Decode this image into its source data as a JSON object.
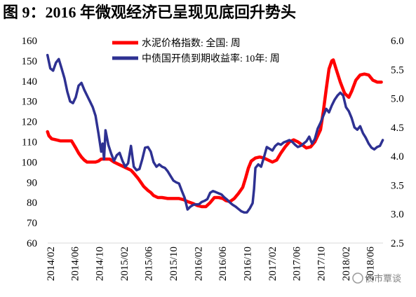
{
  "watermark": "债市覃谈",
  "chart_data": {
    "type": "line",
    "title": "图 9：2016 年微观经济已呈现见底回升势头",
    "x_type": "date",
    "xlim": [
      "2014-01-17",
      "2018-08-03"
    ],
    "x_ticks": [
      "2014/02",
      "2014/06",
      "2014/10",
      "2015/02",
      "2015/06",
      "2015/10",
      "2016/02",
      "2016/06",
      "2016/10",
      "2017/02",
      "2017/06",
      "2017/10",
      "2018/02",
      "2018/06"
    ],
    "y_left": {
      "ylim": [
        60,
        160
      ],
      "ticks": [
        "60",
        "70",
        "80",
        "90",
        "100",
        "110",
        "120",
        "130",
        "140",
        "150",
        "160"
      ]
    },
    "y_right": {
      "ylim": [
        2.5,
        6.0
      ],
      "ticks": [
        "2.5",
        "3.0",
        "3.5",
        "4.0",
        "4.5",
        "5.0",
        "5.5",
        "6.0"
      ]
    },
    "grid": false,
    "legend_position": "top",
    "series": [
      {
        "name": "水泥价格指数: 全国: 周",
        "axis": "left",
        "color": "#ff0000",
        "x": [
          "2014-01-17",
          "2014-01-24",
          "2014-02-07",
          "2014-02-28",
          "2014-03-21",
          "2014-04-11",
          "2014-05-02",
          "2014-05-16",
          "2014-06-06",
          "2014-06-20",
          "2014-07-04",
          "2014-07-18",
          "2014-08-01",
          "2014-08-22",
          "2014-09-12",
          "2014-09-26",
          "2014-10-10",
          "2014-10-31",
          "2014-11-21",
          "2014-12-12",
          "2015-01-02",
          "2015-01-23",
          "2015-02-13",
          "2015-03-06",
          "2015-03-20",
          "2015-04-10",
          "2015-04-24",
          "2015-05-08",
          "2015-05-29",
          "2015-06-12",
          "2015-06-26",
          "2015-07-17",
          "2015-08-07",
          "2015-09-04",
          "2015-10-02",
          "2015-10-30",
          "2015-11-20",
          "2015-12-11",
          "2016-01-08",
          "2016-01-29",
          "2016-02-19",
          "2016-03-11",
          "2016-04-01",
          "2016-04-22",
          "2016-05-13",
          "2016-06-03",
          "2016-06-17",
          "2016-07-08",
          "2016-07-29",
          "2016-08-19",
          "2016-09-09",
          "2016-09-23",
          "2016-10-07",
          "2016-10-21",
          "2016-11-11",
          "2016-12-02",
          "2016-12-23",
          "2017-01-13",
          "2017-02-03",
          "2017-02-24",
          "2017-03-17",
          "2017-04-07",
          "2017-04-28",
          "2017-05-19",
          "2017-06-09",
          "2017-06-30",
          "2017-07-21",
          "2017-08-11",
          "2017-09-01",
          "2017-09-15",
          "2017-09-29",
          "2017-10-13",
          "2017-10-27",
          "2017-11-10",
          "2017-11-24",
          "2017-12-01",
          "2017-12-15",
          "2018-01-05",
          "2018-01-26",
          "2018-02-16",
          "2018-03-02",
          "2018-03-23",
          "2018-04-13",
          "2018-05-04",
          "2018-05-25",
          "2018-06-15",
          "2018-07-06",
          "2018-07-27"
        ],
        "y": [
          115,
          113,
          111.5,
          111,
          110.5,
          110.5,
          110.5,
          110.5,
          107,
          104.5,
          102.5,
          101,
          100,
          100,
          100,
          100.5,
          101.5,
          101.5,
          101.5,
          100,
          99,
          98,
          97,
          96,
          94.5,
          92,
          90,
          88,
          86,
          85,
          83.5,
          82.5,
          82.5,
          82,
          82,
          82,
          81.5,
          80.5,
          79.5,
          78.5,
          78,
          78,
          80,
          82.5,
          82.5,
          82,
          81,
          80.5,
          82,
          84.5,
          87.5,
          92,
          97,
          100.5,
          102,
          102.5,
          102,
          101,
          100,
          101,
          104.5,
          107.5,
          110,
          111,
          110,
          108.5,
          107,
          107.5,
          110,
          113,
          116,
          125,
          136,
          146,
          150,
          150.5,
          146,
          139.5,
          134,
          132,
          135,
          140.5,
          143,
          143.5,
          143,
          140.5,
          139.5,
          139.5
        ]
      },
      {
        "name": "中债国开债到期收益率: 10年: 周",
        "axis": "right",
        "color": "#2e3192",
        "x": [
          "2014-01-17",
          "2014-01-31",
          "2014-02-14",
          "2014-02-28",
          "2014-03-14",
          "2014-03-28",
          "2014-04-11",
          "2014-04-25",
          "2014-05-09",
          "2014-05-23",
          "2014-06-06",
          "2014-06-20",
          "2014-07-04",
          "2014-07-18",
          "2014-08-01",
          "2014-08-15",
          "2014-08-29",
          "2014-09-12",
          "2014-09-26",
          "2014-10-10",
          "2014-10-17",
          "2014-10-24",
          "2014-10-31",
          "2014-11-14",
          "2014-11-28",
          "2014-12-12",
          "2014-12-26",
          "2015-01-09",
          "2015-01-23",
          "2015-02-06",
          "2015-02-20",
          "2015-03-06",
          "2015-03-20",
          "2015-04-03",
          "2015-04-17",
          "2015-05-01",
          "2015-05-15",
          "2015-05-29",
          "2015-06-12",
          "2015-06-26",
          "2015-07-10",
          "2015-07-24",
          "2015-08-07",
          "2015-08-21",
          "2015-09-04",
          "2015-09-18",
          "2015-10-02",
          "2015-10-16",
          "2015-10-30",
          "2015-11-13",
          "2015-11-27",
          "2015-12-11",
          "2015-12-25",
          "2016-01-08",
          "2016-01-22",
          "2016-02-05",
          "2016-02-19",
          "2016-03-04",
          "2016-03-18",
          "2016-04-01",
          "2016-04-15",
          "2016-04-29",
          "2016-05-13",
          "2016-05-27",
          "2016-06-10",
          "2016-06-24",
          "2016-07-08",
          "2016-07-22",
          "2016-08-05",
          "2016-08-19",
          "2016-09-02",
          "2016-09-16",
          "2016-09-30",
          "2016-10-14",
          "2016-10-28",
          "2016-11-04",
          "2016-11-11",
          "2016-11-25",
          "2016-12-09",
          "2016-12-23",
          "2017-01-06",
          "2017-01-20",
          "2017-02-03",
          "2017-02-17",
          "2017-03-03",
          "2017-03-17",
          "2017-03-31",
          "2017-04-14",
          "2017-04-28",
          "2017-05-12",
          "2017-05-26",
          "2017-06-09",
          "2017-06-23",
          "2017-07-07",
          "2017-07-21",
          "2017-08-04",
          "2017-08-18",
          "2017-09-01",
          "2017-09-15",
          "2017-09-29",
          "2017-10-13",
          "2017-10-27",
          "2017-11-10",
          "2017-11-24",
          "2017-12-08",
          "2017-12-22",
          "2018-01-05",
          "2018-01-19",
          "2018-02-02",
          "2018-02-16",
          "2018-03-02",
          "2018-03-16",
          "2018-03-30",
          "2018-04-13",
          "2018-04-27",
          "2018-05-11",
          "2018-05-25",
          "2018-06-08",
          "2018-06-22",
          "2018-07-06",
          "2018-07-20",
          "2018-08-03"
        ],
        "y": [
          5.75,
          5.52,
          5.48,
          5.62,
          5.68,
          5.52,
          5.35,
          5.12,
          4.95,
          4.92,
          5.02,
          5.22,
          5.27,
          5.15,
          5.05,
          4.95,
          4.85,
          4.7,
          4.4,
          4.08,
          4.22,
          3.95,
          4.45,
          4.2,
          4.05,
          3.92,
          4.02,
          4.06,
          3.92,
          3.82,
          3.88,
          4.18,
          3.82,
          3.76,
          3.78,
          3.95,
          4.15,
          4.16,
          4.08,
          3.9,
          3.82,
          3.86,
          3.82,
          3.8,
          3.74,
          3.66,
          3.58,
          3.55,
          3.53,
          3.4,
          3.28,
          3.08,
          3.13,
          3.16,
          3.17,
          3.17,
          3.21,
          3.23,
          3.26,
          3.37,
          3.4,
          3.38,
          3.36,
          3.34,
          3.29,
          3.25,
          3.2,
          3.16,
          3.13,
          3.09,
          3.05,
          3.03,
          3.03,
          3.1,
          3.19,
          3.43,
          3.8,
          3.86,
          3.82,
          3.98,
          4.16,
          4.13,
          4.1,
          4.18,
          4.22,
          4.2,
          4.24,
          4.26,
          4.28,
          4.25,
          4.2,
          4.16,
          4.18,
          4.22,
          4.26,
          4.34,
          4.22,
          4.3,
          4.48,
          4.58,
          4.7,
          4.82,
          4.76,
          4.88,
          4.98,
          5.05,
          5.1,
          5.05,
          4.85,
          4.78,
          4.66,
          4.5,
          4.46,
          4.52,
          4.4,
          4.32,
          4.22,
          4.15,
          4.12,
          4.16,
          4.18,
          4.28
        ]
      }
    ]
  }
}
